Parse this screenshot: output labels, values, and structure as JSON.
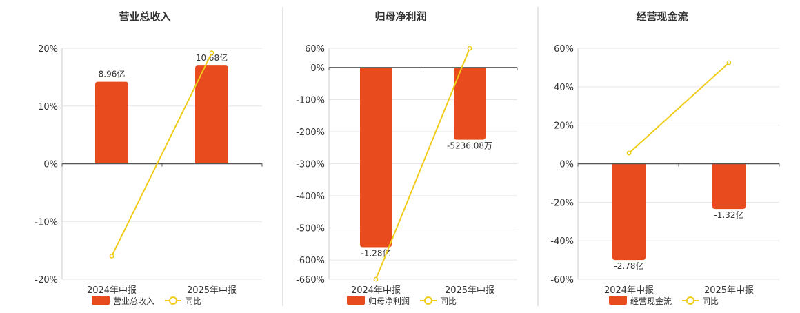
{
  "colors": {
    "bar": "#e84c1e",
    "line": "#f0cc18",
    "axis": "#555555",
    "grid": "#e6e6e6",
    "divider": "#cccccc",
    "text": "#333333"
  },
  "chart_data": [
    {
      "type": "bar",
      "title": "营业总收入",
      "categories": [
        "2024年中报",
        "2025年中报"
      ],
      "y_ticks": [
        "20%",
        "10%",
        "0%",
        "-10%",
        "-20%"
      ],
      "ylim": [
        -20,
        20
      ],
      "y_tick_values": [
        20,
        10,
        0,
        -10,
        -20
      ],
      "series": [
        {
          "name": "营业总收入",
          "kind": "bar",
          "values": [
            14.2,
            17.0
          ],
          "labels": [
            "8.96亿",
            "10.68亿"
          ]
        },
        {
          "name": "同比",
          "kind": "line",
          "values": [
            -16.0,
            19.2
          ]
        }
      ],
      "legend": "bottom-center"
    },
    {
      "type": "bar",
      "title": "归母净利润",
      "categories": [
        "2024年中报",
        "2025年中报"
      ],
      "y_ticks": [
        "60%",
        "0%",
        "-100%",
        "-200%",
        "-300%",
        "-400%",
        "-500%",
        "-600%",
        "-660%"
      ],
      "ylim": [
        -660,
        60
      ],
      "y_tick_values": [
        60,
        0,
        -100,
        -200,
        -300,
        -400,
        -500,
        -600,
        -660
      ],
      "series": [
        {
          "name": "归母净利润",
          "kind": "bar",
          "values": [
            -560,
            -225
          ],
          "labels": [
            "-1.28亿",
            "-5236.08万"
          ]
        },
        {
          "name": "同比",
          "kind": "line",
          "values": [
            -660,
            60
          ]
        }
      ],
      "legend": "bottom-center"
    },
    {
      "type": "bar",
      "title": "经营现金流",
      "categories": [
        "2024年中报",
        "2025年中报"
      ],
      "y_ticks": [
        "60%",
        "40%",
        "20%",
        "0%",
        "-20%",
        "-40%",
        "-60%"
      ],
      "ylim": [
        -60,
        60
      ],
      "y_tick_values": [
        60,
        40,
        20,
        0,
        -20,
        -40,
        -60
      ],
      "series": [
        {
          "name": "经营现金流",
          "kind": "bar",
          "values": [
            -50,
            -23.5
          ],
          "labels": [
            "-2.78亿",
            "-1.32亿"
          ]
        },
        {
          "name": "同比",
          "kind": "line",
          "values": [
            5.5,
            52.5
          ]
        }
      ],
      "legend": "bottom-center"
    }
  ]
}
